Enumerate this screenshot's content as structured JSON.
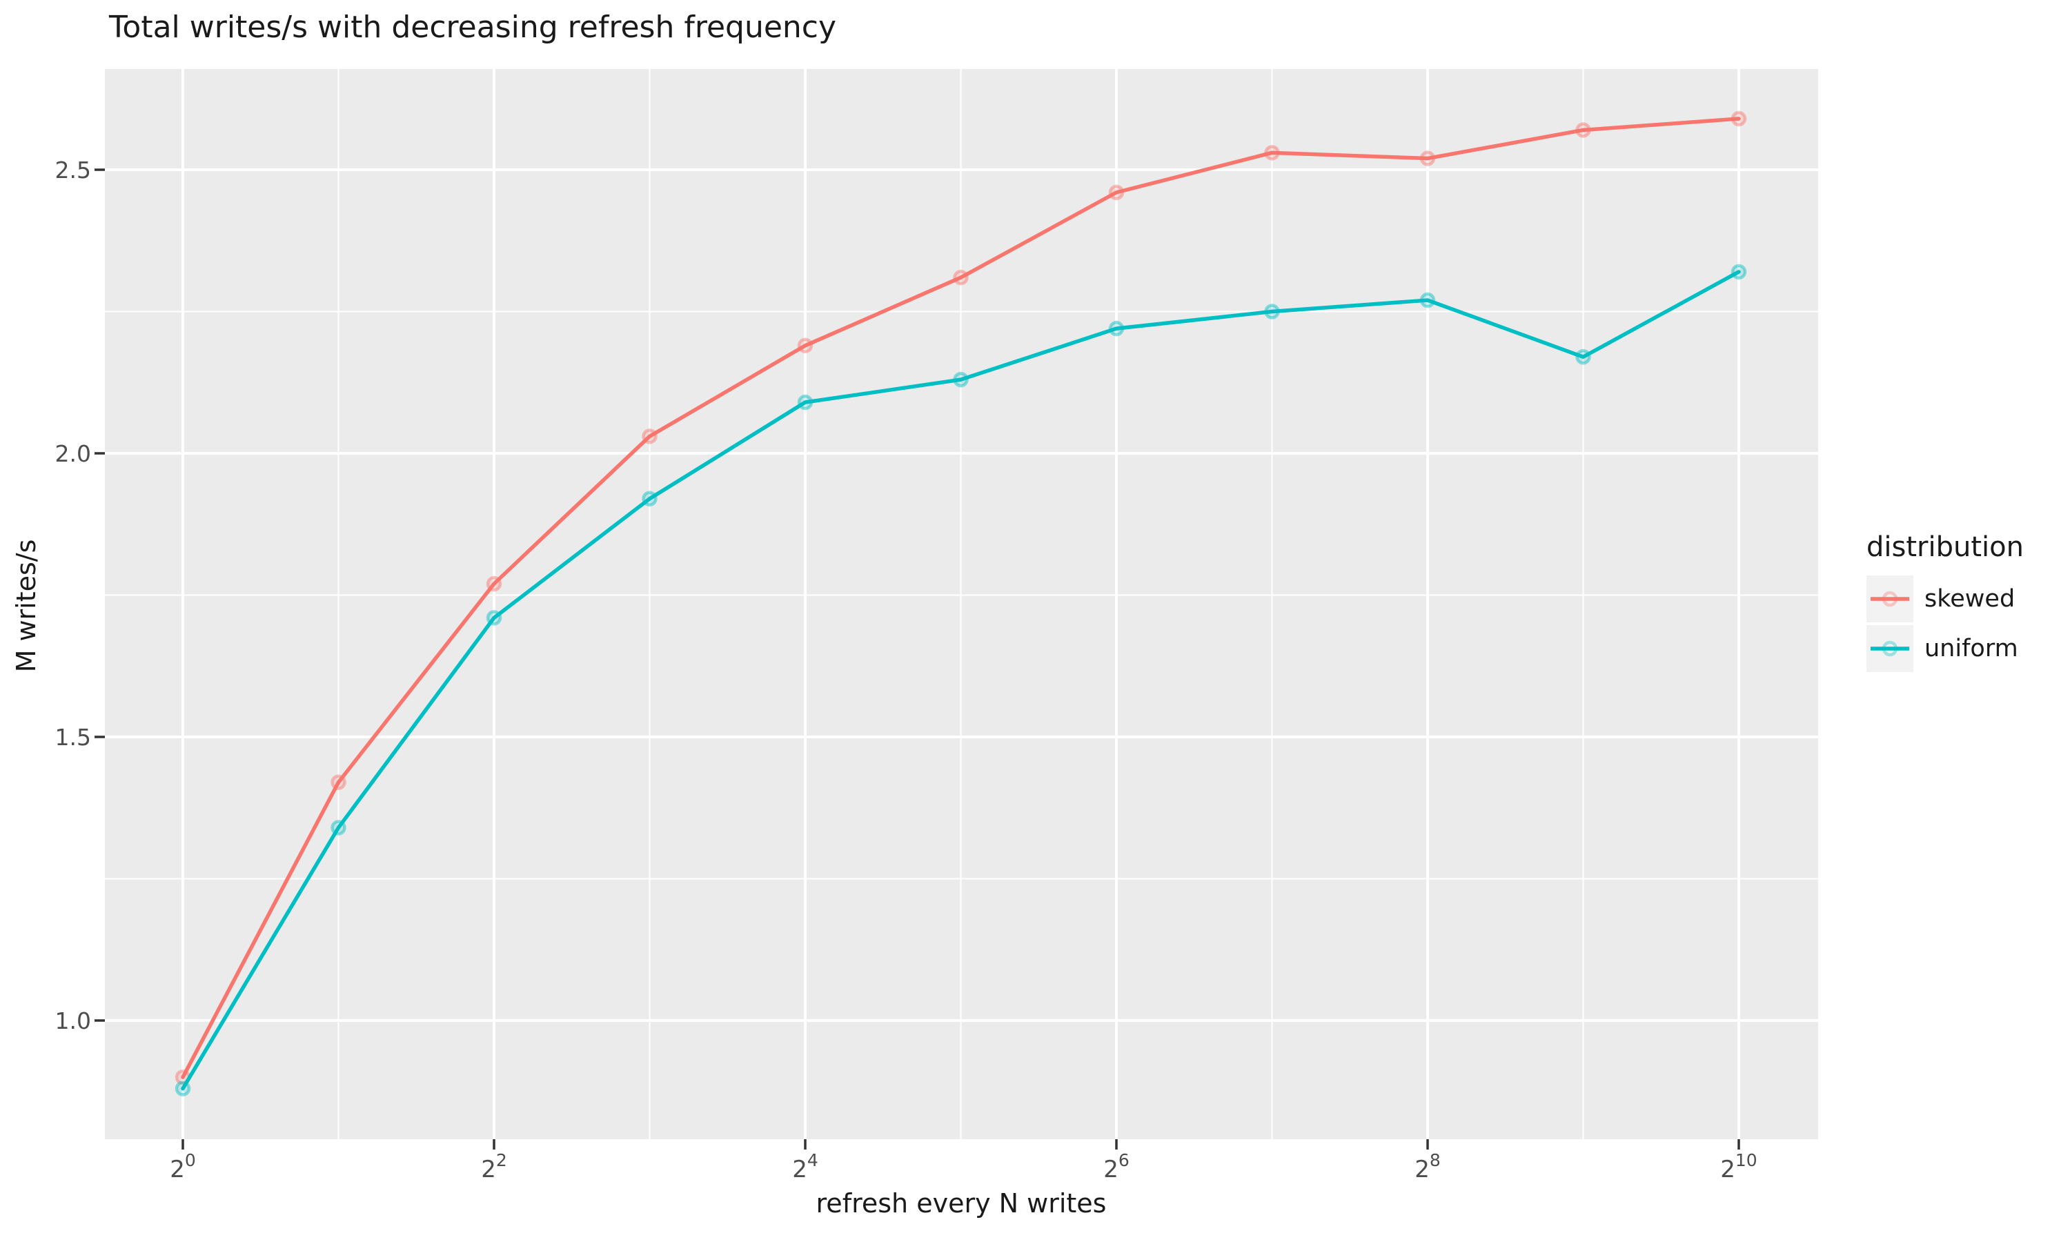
{
  "title": "Total writes/s with decreasing refresh frequency",
  "chart_data": {
    "type": "line",
    "title": "Total writes/s with decreasing refresh frequency",
    "xlabel": "refresh every N writes",
    "ylabel": "M writes/s",
    "x_scale": "log2",
    "x": [
      1,
      2,
      4,
      8,
      16,
      32,
      64,
      128,
      256,
      512,
      1024
    ],
    "x_exponents": [
      0,
      1,
      2,
      3,
      4,
      5,
      6,
      7,
      8,
      9,
      10
    ],
    "series": [
      {
        "name": "skewed",
        "color": "#F8766D",
        "values": [
          0.9,
          1.42,
          1.77,
          2.03,
          2.19,
          2.31,
          2.46,
          2.53,
          2.52,
          2.57,
          2.59
        ]
      },
      {
        "name": "uniform",
        "color": "#00BFC4",
        "values": [
          0.88,
          1.34,
          1.71,
          1.92,
          2.09,
          2.13,
          2.22,
          2.25,
          2.27,
          2.17,
          2.32
        ]
      }
    ],
    "ylim": [
      0.79,
      2.68
    ],
    "y_major_ticks": [
      1.0,
      1.5,
      2.0,
      2.5
    ],
    "y_tick_labels": [
      "1.0",
      "1.5",
      "2.0",
      "2.5"
    ],
    "y_minor_ticks": [
      1.25,
      1.75,
      2.25
    ],
    "x_major_tick_exponents": [
      0,
      2,
      4,
      6,
      8,
      10
    ],
    "x_minor_tick_exponents": [
      1,
      3,
      5,
      7,
      9
    ],
    "x_tick_label_base": "2",
    "grid": true,
    "legend_title": "distribution",
    "legend_position": "right"
  },
  "colors": {
    "panel_bg": "#EBEBEB",
    "grid": "#FFFFFF",
    "tick_text": "#4D4D4D",
    "tick_mark": "#333333",
    "text": "#1A1A1A",
    "legend_key_bg": "#F2F2F2",
    "page_bg": "#FFFFFF"
  }
}
